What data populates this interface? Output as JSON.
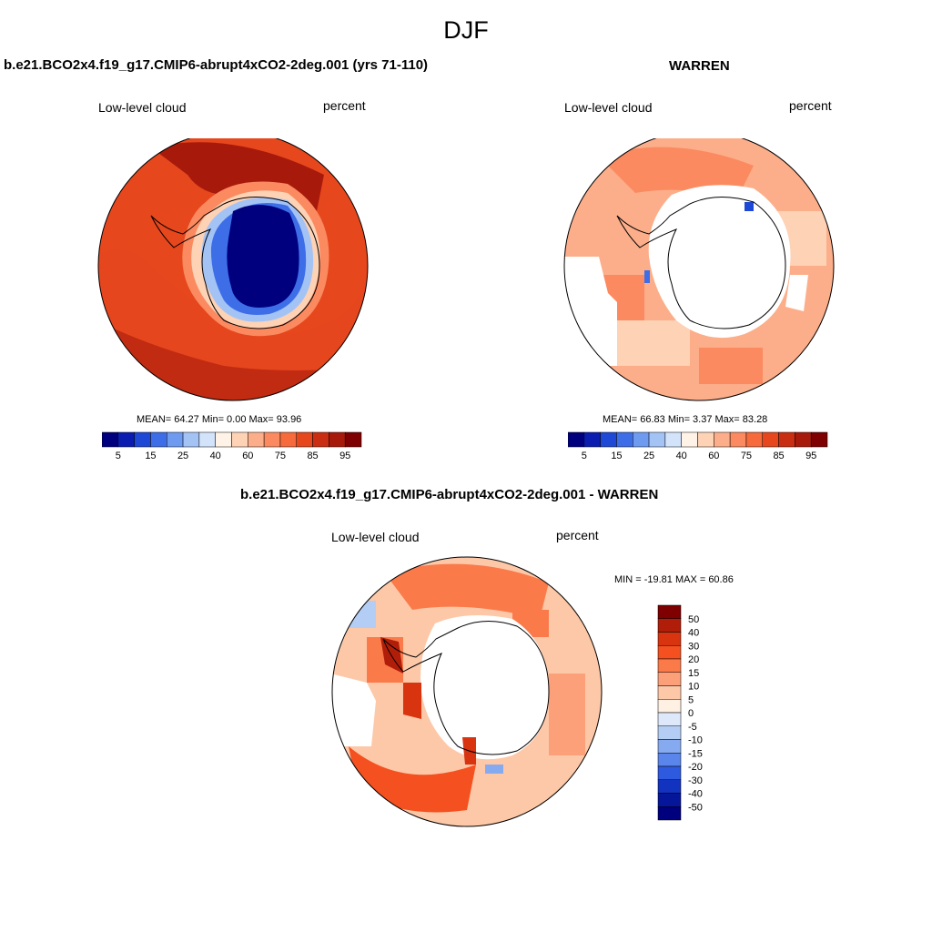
{
  "figure": {
    "title": "DJF",
    "colors": {
      "coast": "#000000",
      "rim": "#000000",
      "missing": "#ffffff"
    }
  },
  "panels": [
    {
      "id": "model",
      "title": "b.e21.BCO2x4.f19_g17.CMIP6-abrupt4xCO2-2deg.001 (yrs 71-110)",
      "left_label": "Low-level cloud",
      "right_label": "percent",
      "stats_text": "MEAN=  64.27  Min=   0.00  Max=  93.96"
    },
    {
      "id": "obs",
      "title": "WARREN",
      "left_label": "Low-level cloud",
      "right_label": "percent",
      "stats_text": "MEAN=  66.83  Min=   3.37  Max=  83.28"
    },
    {
      "id": "diff",
      "title": "b.e21.BCO2x4.f19_g17.CMIP6-abrupt4xCO2-2deg.001 - WARREN",
      "left_label": "Low-level cloud",
      "right_label": "percent",
      "stats_text": "MIN = -19.81 MAX =  60.86"
    }
  ],
  "colorbar_abs": {
    "labels": [
      "5",
      "15",
      "25",
      "40",
      "60",
      "75",
      "85",
      "95"
    ],
    "colors": [
      "#00007f",
      "#0a1db0",
      "#1e49d6",
      "#3d6ee8",
      "#6e9af0",
      "#a4c3f5",
      "#d2e3fa",
      "#fff2e6",
      "#fdd2b5",
      "#fcae8a",
      "#fb8a60",
      "#f66a3c",
      "#e7471d",
      "#c92e12",
      "#a71a0b",
      "#7f0000"
    ]
  },
  "colorbar_diff": {
    "labels": [
      "50",
      "40",
      "30",
      "20",
      "15",
      "10",
      "5",
      "0",
      "-5",
      "-10",
      "-15",
      "-20",
      "-30",
      "-40",
      "-50"
    ],
    "colors": [
      "#7f0000",
      "#b01e0a",
      "#d8340f",
      "#f5501f",
      "#fb7a4a",
      "#fca07a",
      "#fdc8a8",
      "#fff0e4",
      "#dde9fa",
      "#b4cdf5",
      "#86aaf0",
      "#5a85ea",
      "#2e5ae0",
      "#1232c0",
      "#06169a",
      "#00007f"
    ]
  }
}
